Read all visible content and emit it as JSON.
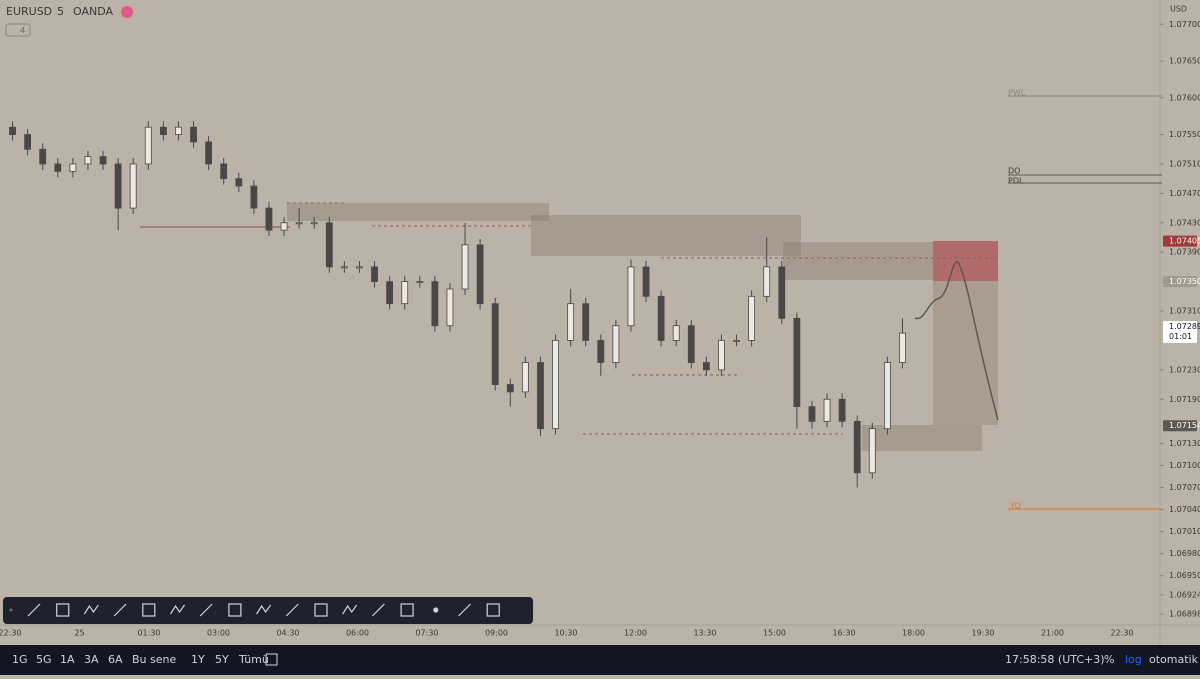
{
  "header": {
    "symbol": "EURUSD",
    "interval": "5",
    "source": "OANDA",
    "indicator_count": "4",
    "currency": "USD"
  },
  "chart_data": {
    "type": "candlestick",
    "open": [
      1.0756,
      1.0755,
      1.0753,
      1.0751,
      1.075,
      1.0751,
      1.0752,
      1.0751,
      1.0745,
      1.0751,
      1.0756,
      1.0755,
      1.0756,
      1.0754,
      1.0751,
      1.0749,
      1.0748,
      1.0745,
      1.0742,
      1.0743,
      1.0743,
      1.0743,
      1.0737,
      1.0737,
      1.0737,
      1.0735,
      1.0732,
      1.0735,
      1.0735,
      1.0729,
      1.0734,
      1.074,
      1.0732,
      1.0721,
      1.072,
      1.0724,
      1.0715,
      1.0727,
      1.0732,
      1.0727,
      1.0724,
      1.0729,
      1.0737,
      1.0733,
      1.0727,
      1.0729,
      1.0724,
      1.0723,
      1.0727,
      1.0727,
      1.0733,
      1.0737,
      1.073,
      1.0718,
      1.0716,
      1.0719,
      1.0716,
      1.0709,
      1.0715,
      1.0724
    ],
    "high": [
      1.07568,
      1.07558,
      1.07538,
      1.07518,
      1.07518,
      1.07528,
      1.07528,
      1.07518,
      1.07518,
      1.07568,
      1.07568,
      1.07568,
      1.07568,
      1.07548,
      1.07518,
      1.07498,
      1.07488,
      1.07458,
      1.07438,
      1.0745,
      1.07438,
      1.07438,
      1.07378,
      1.07378,
      1.07378,
      1.07358,
      1.07358,
      1.07358,
      1.07358,
      1.07348,
      1.0743,
      1.07408,
      1.07328,
      1.07218,
      1.07248,
      1.07248,
      1.07278,
      1.0734,
      1.07328,
      1.07278,
      1.07298,
      1.0738,
      1.07378,
      1.07338,
      1.07298,
      1.07298,
      1.07248,
      1.07278,
      1.07278,
      1.07338,
      1.0741,
      1.07378,
      1.07308,
      1.07188,
      1.07198,
      1.07198,
      1.07168,
      1.07158,
      1.07248,
      1.073
    ],
    "low": [
      1.07542,
      1.07522,
      1.07502,
      1.07492,
      1.07492,
      1.07502,
      1.07502,
      1.0742,
      1.07442,
      1.07502,
      1.07542,
      1.07542,
      1.07532,
      1.07502,
      1.07482,
      1.07472,
      1.07442,
      1.07412,
      1.07412,
      1.07422,
      1.07422,
      1.07362,
      1.07362,
      1.07362,
      1.07342,
      1.07312,
      1.07312,
      1.07342,
      1.07282,
      1.07282,
      1.07332,
      1.07312,
      1.07202,
      1.0718,
      1.07192,
      1.0714,
      1.07142,
      1.07262,
      1.07262,
      1.07222,
      1.07232,
      1.07282,
      1.07322,
      1.07262,
      1.07262,
      1.07232,
      1.07222,
      1.07222,
      1.07262,
      1.07262,
      1.07322,
      1.07292,
      1.0715,
      1.0715,
      1.07152,
      1.07152,
      1.0707,
      1.07082,
      1.07142,
      1.07232
    ],
    "close": [
      1.0755,
      1.0753,
      1.0751,
      1.075,
      1.0751,
      1.0752,
      1.0751,
      1.0745,
      1.0751,
      1.0756,
      1.0755,
      1.0756,
      1.0754,
      1.0751,
      1.0749,
      1.0748,
      1.0745,
      1.0742,
      1.0743,
      1.0743,
      1.0743,
      1.0737,
      1.0737,
      1.0737,
      1.0735,
      1.0732,
      1.0735,
      1.0735,
      1.0729,
      1.0734,
      1.074,
      1.0732,
      1.0721,
      1.072,
      1.0724,
      1.0715,
      1.0727,
      1.0732,
      1.0727,
      1.0724,
      1.0729,
      1.0737,
      1.0733,
      1.0727,
      1.0729,
      1.0724,
      1.0723,
      1.0727,
      1.0727,
      1.0733,
      1.0737,
      1.073,
      1.0718,
      1.0716,
      1.0719,
      1.0716,
      1.0709,
      1.0715,
      1.0724,
      1.0728
    ],
    "up_color": "#ece8e2",
    "down_color": "#4a4846",
    "ylim": [
      1.06883,
      1.07733
    ],
    "yticks": [
      {
        "value": 1.077,
        "label": "1.07700"
      },
      {
        "value": 1.0765,
        "label": "1.07650"
      },
      {
        "value": 1.076,
        "label": "1.07600"
      },
      {
        "value": 1.0755,
        "label": "1.07550"
      },
      {
        "value": 1.0751,
        "label": "1.07510"
      },
      {
        "value": 1.0747,
        "label": "1.07470"
      },
      {
        "value": 1.0743,
        "label": "1.07430"
      },
      {
        "value": 1.0739,
        "label": "1.07390"
      },
      {
        "value": 1.0731,
        "label": "1.07310"
      },
      {
        "value": 1.0723,
        "label": "1.07230"
      },
      {
        "value": 1.0719,
        "label": "1.07190"
      },
      {
        "value": 1.0713,
        "label": "1.07130"
      },
      {
        "value": 1.071,
        "label": "1.07100"
      },
      {
        "value": 1.0707,
        "label": "1.07070"
      },
      {
        "value": 1.0704,
        "label": "1.07040"
      },
      {
        "value": 1.0701,
        "label": "1.07010"
      },
      {
        "value": 1.0698,
        "label": "1.06980"
      },
      {
        "value": 1.0695,
        "label": "1.06950"
      },
      {
        "value": 1.06924,
        "label": "1.06924"
      },
      {
        "value": 1.06898,
        "label": "1.06898"
      }
    ],
    "price_labels": [
      {
        "value": 1.07405,
        "label": "1.07405",
        "color": "#9e3b3b"
      },
      {
        "value": 1.0735,
        "label": "1.07350",
        "color": "#a39a8e"
      },
      {
        "value": 1.07289,
        "label": "1.07289",
        "countdown": "01:01",
        "color": "#ffffff"
      },
      {
        "value": 1.07154,
        "label": "1.07154",
        "color": "#5e5852"
      }
    ],
    "levels": [
      "PWL",
      "DO",
      "PDL",
      "YO"
    ]
  },
  "time_axis": {
    "labels": [
      "22:30",
      "25",
      "01:30",
      "03:00",
      "04:30",
      "06:00",
      "07:30",
      "09:00",
      "10:30",
      "12:00",
      "13:30",
      "15:00",
      "16:30",
      "18:00",
      "19:30",
      "21:00",
      "22:30"
    ]
  },
  "bottom_bar": {
    "ranges": [
      "1G",
      "5G",
      "1A",
      "3A",
      "6A",
      "Bu sene",
      "1Y",
      "5Y",
      "Tümü"
    ],
    "clock": "17:58:58 (UTC+3)",
    "percent": "%",
    "log": "log",
    "auto": "otomatik"
  }
}
